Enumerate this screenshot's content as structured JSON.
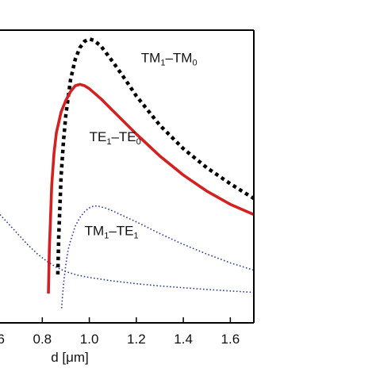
{
  "chart_data": {
    "type": "line",
    "xlabel": "d [μm]",
    "xlim": [
      0.62,
      1.7
    ],
    "ylim": [
      0,
      1
    ],
    "x_ticks": [
      "0.8",
      "1.0",
      "1.2",
      "1.4",
      "1.6"
    ],
    "x_tick_values": [
      0.8,
      1.0,
      1.2,
      1.4,
      1.6
    ],
    "grid": false,
    "series": [
      {
        "name": "TM1–TM0",
        "label_main": [
          "TM",
          "–TM"
        ],
        "label_sub": [
          "1",
          "0"
        ],
        "color": "#000000",
        "style": "dotted-thick",
        "x": [
          0.866,
          0.87,
          0.88,
          0.89,
          0.9,
          0.92,
          0.94,
          0.96,
          0.98,
          1.0,
          1.02,
          1.05,
          1.1,
          1.15,
          1.2,
          1.3,
          1.4,
          1.5,
          1.6,
          1.7
        ],
        "y": [
          0.165,
          0.3,
          0.5,
          0.62,
          0.71,
          0.83,
          0.9,
          0.94,
          0.962,
          0.97,
          0.965,
          0.945,
          0.892,
          0.835,
          0.775,
          0.675,
          0.595,
          0.53,
          0.475,
          0.425
        ]
      },
      {
        "name": "TE1–TE0",
        "label_main": [
          "TE",
          "–TE"
        ],
        "label_sub": [
          "1",
          "0"
        ],
        "color": "#d42020",
        "style": "solid",
        "x": [
          0.826,
          0.83,
          0.84,
          0.85,
          0.86,
          0.88,
          0.9,
          0.92,
          0.94,
          0.96,
          0.98,
          1.0,
          1.05,
          1.1,
          1.2,
          1.3,
          1.4,
          1.5,
          1.6,
          1.7
        ],
        "y": [
          0.1,
          0.25,
          0.47,
          0.58,
          0.65,
          0.72,
          0.76,
          0.79,
          0.81,
          0.815,
          0.81,
          0.8,
          0.765,
          0.725,
          0.645,
          0.57,
          0.505,
          0.45,
          0.405,
          0.37
        ]
      },
      {
        "name": "TM1–TE1",
        "label_main": [
          "TM",
          "–TE"
        ],
        "label_sub": [
          "1",
          "1"
        ],
        "color": "#2a3f9a",
        "style": "dotted-thin",
        "x": [
          0.882,
          0.89,
          0.9,
          0.91,
          0.92,
          0.94,
          0.96,
          0.98,
          1.0,
          1.02,
          1.04,
          1.07,
          1.1,
          1.2,
          1.3,
          1.4,
          1.5,
          1.6,
          1.7
        ],
        "y": [
          0.05,
          0.13,
          0.2,
          0.25,
          0.28,
          0.33,
          0.36,
          0.38,
          0.393,
          0.4,
          0.398,
          0.392,
          0.382,
          0.345,
          0.305,
          0.268,
          0.235,
          0.205,
          0.18
        ]
      },
      {
        "name": "",
        "color": "#2a3f9a",
        "style": "dotted-thin",
        "x": [
          0.62,
          0.66,
          0.7,
          0.74,
          0.78,
          0.82,
          0.86,
          0.9,
          0.95,
          1.0,
          1.1,
          1.2,
          1.3,
          1.4,
          1.5,
          1.6,
          1.7
        ],
        "y": [
          0.37,
          0.335,
          0.3,
          0.265,
          0.235,
          0.21,
          0.19,
          0.175,
          0.163,
          0.155,
          0.143,
          0.134,
          0.126,
          0.12,
          0.114,
          0.109,
          0.104
        ]
      }
    ]
  }
}
